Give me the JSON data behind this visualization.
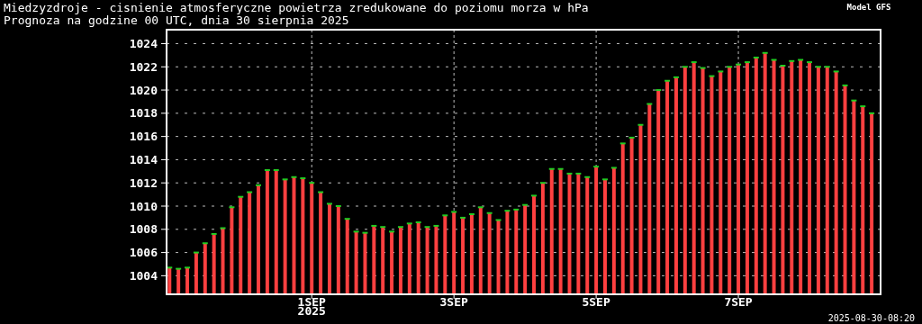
{
  "chart_data": {
    "type": "bar",
    "title": "Miedzyzdroje - cisnienie atmosferyczne powietrza zredukowane do poziomu morza w hPa",
    "subtitle": "Prognoza na godzine 00 UTC, dnia 30 sierpnia 2025",
    "annotations": [
      "Model GFS",
      "2025-08-30-08:20"
    ],
    "x": [
      "2025-08-30T00:00",
      "2025-08-30T03:00",
      "2025-08-30T06:00",
      "2025-08-30T09:00",
      "2025-08-30T12:00",
      "2025-08-30T15:00",
      "2025-08-30T18:00",
      "2025-08-30T21:00",
      "2025-08-31T00:00",
      "2025-08-31T03:00",
      "2025-08-31T06:00",
      "2025-08-31T09:00",
      "2025-08-31T12:00",
      "2025-08-31T15:00",
      "2025-08-31T18:00",
      "2025-08-31T21:00",
      "2025-09-01T00:00",
      "2025-09-01T03:00",
      "2025-09-01T06:00",
      "2025-09-01T09:00",
      "2025-09-01T12:00",
      "2025-09-01T15:00",
      "2025-09-01T18:00",
      "2025-09-01T21:00",
      "2025-09-02T00:00",
      "2025-09-02T03:00",
      "2025-09-02T06:00",
      "2025-09-02T09:00",
      "2025-09-02T12:00",
      "2025-09-02T15:00",
      "2025-09-02T18:00",
      "2025-09-02T21:00",
      "2025-09-03T00:00",
      "2025-09-03T03:00",
      "2025-09-03T06:00",
      "2025-09-03T09:00",
      "2025-09-03T12:00",
      "2025-09-03T15:00",
      "2025-09-03T18:00",
      "2025-09-03T21:00",
      "2025-09-04T00:00",
      "2025-09-04T03:00",
      "2025-09-04T06:00",
      "2025-09-04T09:00",
      "2025-09-04T12:00",
      "2025-09-04T15:00",
      "2025-09-04T18:00",
      "2025-09-04T21:00",
      "2025-09-05T00:00",
      "2025-09-05T03:00",
      "2025-09-05T06:00",
      "2025-09-05T09:00",
      "2025-09-05T12:00",
      "2025-09-05T15:00",
      "2025-09-05T18:00",
      "2025-09-05T21:00",
      "2025-09-06T00:00",
      "2025-09-06T03:00",
      "2025-09-06T06:00",
      "2025-09-06T09:00",
      "2025-09-06T12:00",
      "2025-09-06T15:00",
      "2025-09-06T18:00",
      "2025-09-06T21:00",
      "2025-09-07T00:00",
      "2025-09-07T03:00",
      "2025-09-07T06:00",
      "2025-09-07T09:00",
      "2025-09-07T12:00",
      "2025-09-07T15:00",
      "2025-09-07T18:00",
      "2025-09-07T21:00",
      "2025-09-08T00:00",
      "2025-09-08T03:00",
      "2025-09-08T06:00",
      "2025-09-08T09:00",
      "2025-09-08T12:00",
      "2025-09-08T15:00",
      "2025-09-08T18:00",
      "2025-09-08T21:00"
    ],
    "series": [
      {
        "color": "#ff4040",
        "values": [
          1004.7,
          1004.6,
          1004.7,
          1006.0,
          1006.8,
          1007.6,
          1008.1,
          1009.9,
          1010.8,
          1011.2,
          1011.8,
          1013.1,
          1013.1,
          1012.3,
          1012.5,
          1012.4,
          1012.0,
          1011.2,
          1010.2,
          1010.0,
          1008.9,
          1007.8,
          1007.7,
          1008.3,
          1008.2,
          1007.8,
          1008.2,
          1008.5,
          1008.6,
          1008.2,
          1008.3,
          1009.2,
          1009.5,
          1009.0,
          1009.3,
          1009.9,
          1009.4,
          1008.8,
          1009.6,
          1009.7,
          1010.1,
          1010.9,
          1012.0,
          1013.2,
          1013.2,
          1012.8,
          1012.8,
          1012.5,
          1013.4,
          1012.3,
          1013.3,
          1015.4,
          1015.9,
          1017.0,
          1018.8,
          1020.0,
          1020.8,
          1021.1,
          1022.0,
          1022.4,
          1021.9,
          1021.2,
          1021.6,
          1022.0,
          1022.2,
          1022.4,
          1022.8,
          1023.2,
          1022.6,
          1022.1,
          1022.5,
          1022.6,
          1022.4,
          1022.0,
          1022.0,
          1021.6,
          1020.4,
          1019.1,
          1018.6,
          1018.0
        ]
      }
    ],
    "xlim": [
      "2025-08-29T23:00",
      "2025-09-09T00:00"
    ],
    "xticks": [
      {
        "value": "2025-09-01",
        "label": "1SEP\n2025"
      },
      {
        "value": "2025-09-03",
        "label": "3SEP"
      },
      {
        "value": "2025-09-05",
        "label": "5SEP"
      },
      {
        "value": "2025-09-07",
        "label": "7SEP"
      }
    ],
    "ylim": [
      1002.4,
      1025.2
    ],
    "yticks": [
      1004,
      1006,
      1008,
      1010,
      1012,
      1014,
      1016,
      1018,
      1020,
      1022,
      1024
    ],
    "grid": true
  }
}
